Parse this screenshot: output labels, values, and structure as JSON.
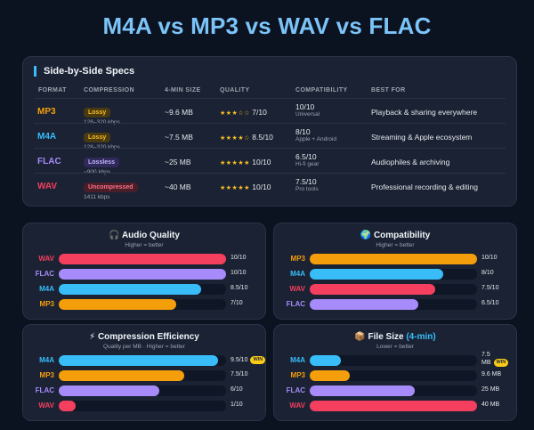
{
  "title": "M4A vs MP3 vs WAV vs FLAC",
  "colors": {
    "mp3": "#f59e0b",
    "m4a": "#38bdf8",
    "flac": "#a78bfa",
    "wav": "#f43f5e",
    "accent": "#38bdf8"
  },
  "specs": {
    "heading": "Side-by-Side Specs",
    "columns": [
      "FORMAT",
      "COMPRESSION",
      "4-MIN SIZE",
      "QUALITY",
      "COMPATIBILITY",
      "BEST FOR"
    ],
    "rows": [
      {
        "format": "MP3",
        "badge": "Lossy",
        "badge_sub": "128–320 kbps",
        "size": "~9.6 MB",
        "stars": "★★★☆☆",
        "quality": "7/10",
        "compat": "10/10",
        "compat_sub": "Universal",
        "best": "Playback & sharing everywhere"
      },
      {
        "format": "M4A",
        "badge": "Lossy",
        "badge_sub": "128–320 kbps",
        "size": "~7.5 MB",
        "stars": "★★★★☆",
        "quality": "8.5/10",
        "compat": "8/10",
        "compat_sub": "Apple + Android",
        "best": "Streaming & Apple ecosystem"
      },
      {
        "format": "FLAC",
        "badge": "Lossless",
        "badge_sub": "~900 kbps",
        "size": "~25 MB",
        "stars": "★★★★★",
        "quality": "10/10",
        "compat": "6.5/10",
        "compat_sub": "Hi-fi gear",
        "best": "Audiophiles & archiving"
      },
      {
        "format": "WAV",
        "badge": "Uncompressed",
        "badge_sub": "1411 kbps",
        "size": "~40 MB",
        "stars": "★★★★★",
        "quality": "10/10",
        "compat": "7.5/10",
        "compat_sub": "Pro tools",
        "best": "Professional recording & editing"
      }
    ]
  },
  "audio_quality": {
    "icon": "🎧",
    "title": "Audio Quality",
    "subtitle": "Higher = better",
    "bars": [
      {
        "label": "WAV",
        "value": 10,
        "text": "10/10"
      },
      {
        "label": "FLAC",
        "value": 10,
        "text": "10/10"
      },
      {
        "label": "M4A",
        "value": 8.5,
        "text": "8.5/10"
      },
      {
        "label": "MP3",
        "value": 7,
        "text": "7/10"
      }
    ]
  },
  "compatibility": {
    "icon": "🌍",
    "title": "Compatibility",
    "subtitle": "Higher = better",
    "bars": [
      {
        "label": "MP3",
        "value": 10,
        "text": "10/10"
      },
      {
        "label": "M4A",
        "value": 8,
        "text": "8/10"
      },
      {
        "label": "WAV",
        "value": 7.5,
        "text": "7.5/10"
      },
      {
        "label": "FLAC",
        "value": 6.5,
        "text": "6.5/10"
      }
    ]
  },
  "compression": {
    "icon": "⚡",
    "title": "Compression Efficiency",
    "subtitle": "Quality per MB · Higher = better",
    "win_label": "WIN",
    "bars": [
      {
        "label": "M4A",
        "value": 9.5,
        "text": "9.5/10"
      },
      {
        "label": "MP3",
        "value": 7.5,
        "text": "7.5/10"
      },
      {
        "label": "FLAC",
        "value": 6,
        "text": "6/10"
      },
      {
        "label": "WAV",
        "value": 1,
        "text": "1/10"
      }
    ]
  },
  "file_size": {
    "icon": "📦",
    "title": "File Size",
    "title_suffix": "(4-min)",
    "subtitle": "Lower = better",
    "win_label": "WIN",
    "bars": [
      {
        "label": "M4A",
        "value": 7.5,
        "text": "7.5 MB"
      },
      {
        "label": "MP3",
        "value": 9.6,
        "text": "9.6 MB"
      },
      {
        "label": "FLAC",
        "value": 25,
        "text": "25 MB"
      },
      {
        "label": "WAV",
        "value": 40,
        "text": "40 MB"
      }
    ]
  }
}
